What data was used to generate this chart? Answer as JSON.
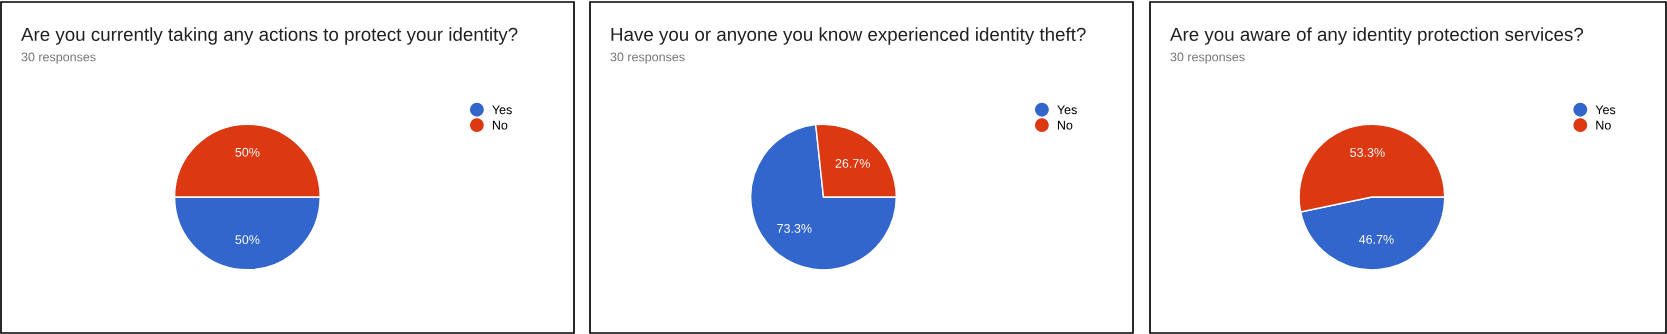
{
  "chart_data": [
    {
      "type": "pie",
      "title": "Are you currently taking any actions to protect your identity?",
      "subtitle": "30 responses",
      "categories": [
        "Yes",
        "No"
      ],
      "values": [
        50,
        50
      ],
      "colors": [
        "#3366cc",
        "#dc3912"
      ],
      "value_labels": [
        "50%",
        "50%"
      ],
      "legend": "top right"
    },
    {
      "type": "pie",
      "title": "Have you or anyone you know experienced identity theft?",
      "subtitle": "30 responses",
      "categories": [
        "Yes",
        "No"
      ],
      "values": [
        73.3,
        26.7
      ],
      "colors": [
        "#3366cc",
        "#dc3912"
      ],
      "value_labels": [
        "73.3%",
        "26.7%"
      ],
      "legend": "top right"
    },
    {
      "type": "pie",
      "title": "Are you aware of any identity protection services?",
      "subtitle": "30 responses",
      "categories": [
        "Yes",
        "No"
      ],
      "values": [
        46.7,
        53.3
      ],
      "colors": [
        "#3366cc",
        "#dc3912"
      ],
      "value_labels": [
        "46.7%",
        "53.3%"
      ],
      "legend": "top right"
    }
  ]
}
